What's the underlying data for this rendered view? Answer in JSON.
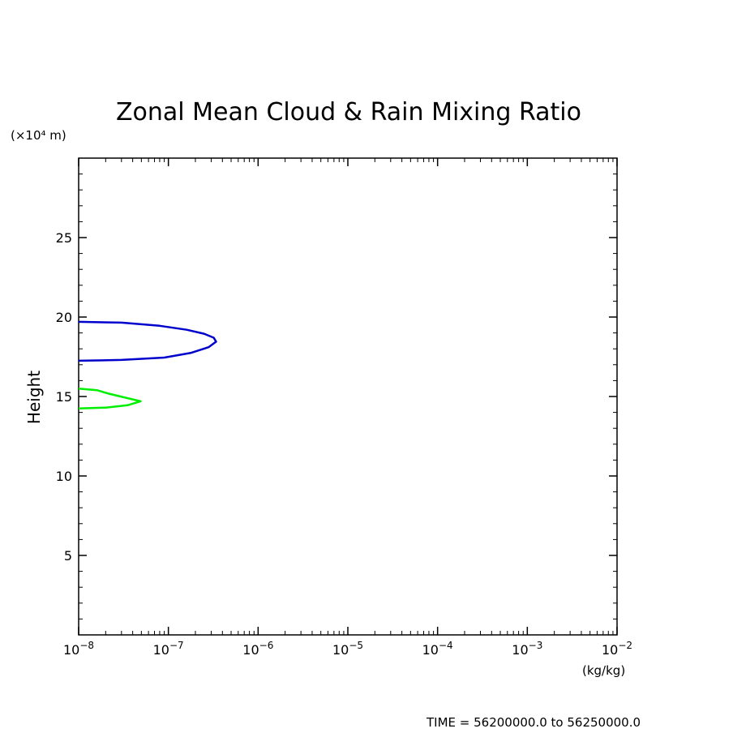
{
  "chart_data": {
    "type": "line",
    "title": "Zonal Mean Cloud & Rain Mixing Ratio",
    "ylabel": "Height",
    "y_unit_label": "(×10⁴ m)",
    "x_unit_label": "(kg/kg)",
    "x_scale": "log",
    "xlim": [
      1e-08,
      0.01
    ],
    "ylim": [
      0,
      30
    ],
    "x_ticks": [
      {
        "value": 1e-08,
        "base": "10",
        "exp": "−8"
      },
      {
        "value": 1e-07,
        "base": "10",
        "exp": "−7"
      },
      {
        "value": 1e-06,
        "base": "10",
        "exp": "−6"
      },
      {
        "value": 1e-05,
        "base": "10",
        "exp": "−5"
      },
      {
        "value": 0.0001,
        "base": "10",
        "exp": "−4"
      },
      {
        "value": 0.001,
        "base": "10",
        "exp": "−3"
      },
      {
        "value": 0.01,
        "base": "10",
        "exp": "−2"
      }
    ],
    "y_ticks": [
      {
        "value": 5,
        "label": "5"
      },
      {
        "value": 10,
        "label": "10"
      },
      {
        "value": 15,
        "label": "15"
      },
      {
        "value": 20,
        "label": "20"
      },
      {
        "value": 25,
        "label": "25"
      }
    ],
    "grid": false,
    "series": [
      {
        "color": "#0000cc",
        "points": [
          {
            "x": 1e-08,
            "y": 19.7
          },
          {
            "x": 3e-08,
            "y": 19.65
          },
          {
            "x": 8e-08,
            "y": 19.45
          },
          {
            "x": 1.6e-07,
            "y": 19.2
          },
          {
            "x": 2.5e-07,
            "y": 18.95
          },
          {
            "x": 3.2e-07,
            "y": 18.7
          },
          {
            "x": 3.4e-07,
            "y": 18.45
          },
          {
            "x": 2.8e-07,
            "y": 18.1
          },
          {
            "x": 1.8e-07,
            "y": 17.75
          },
          {
            "x": 9e-08,
            "y": 17.45
          },
          {
            "x": 3e-08,
            "y": 17.3
          },
          {
            "x": 1e-08,
            "y": 17.25
          }
        ]
      },
      {
        "color": "#00ee00",
        "points": [
          {
            "x": 1e-08,
            "y": 15.5
          },
          {
            "x": 1.6e-08,
            "y": 15.4
          },
          {
            "x": 2.1e-08,
            "y": 15.2
          },
          {
            "x": 3.2e-08,
            "y": 14.95
          },
          {
            "x": 4.9e-08,
            "y": 14.7
          },
          {
            "x": 3.5e-08,
            "y": 14.45
          },
          {
            "x": 2e-08,
            "y": 14.3
          },
          {
            "x": 1e-08,
            "y": 14.25
          }
        ]
      }
    ]
  },
  "footer": {
    "time_label": "TIME = 56200000.0 to 56250000.0"
  }
}
